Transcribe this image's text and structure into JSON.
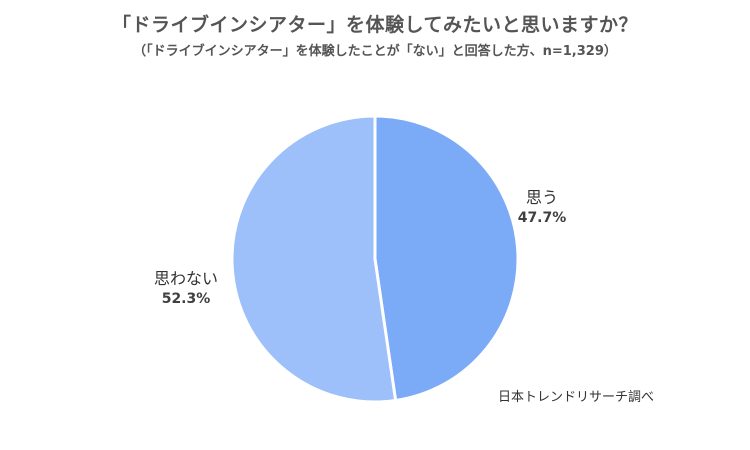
{
  "title": "「ドライブインシアター」を体験してみたいと思いますか？",
  "subtitle": "（「ドライブインシアター」を体験したことが「ない」と回答した方、n=1,329）",
  "source": "日本トレンドリサーチ調べ",
  "chart_data": {
    "type": "pie",
    "title": "「ドライブインシアター」を体験してみたいと思いますか？",
    "subtitle": "（「ドライブインシアター」を体験したことが「ない」と回答した方、n=1,329）",
    "start": "12 o'clock",
    "direction": "clockwise",
    "slices": [
      {
        "label": "思う",
        "value": 47.7,
        "value_label": "47.7%",
        "color": "#7baaf7"
      },
      {
        "label": "思わない",
        "value": 52.3,
        "value_label": "52.3%",
        "color": "#9dbffa"
      }
    ]
  }
}
